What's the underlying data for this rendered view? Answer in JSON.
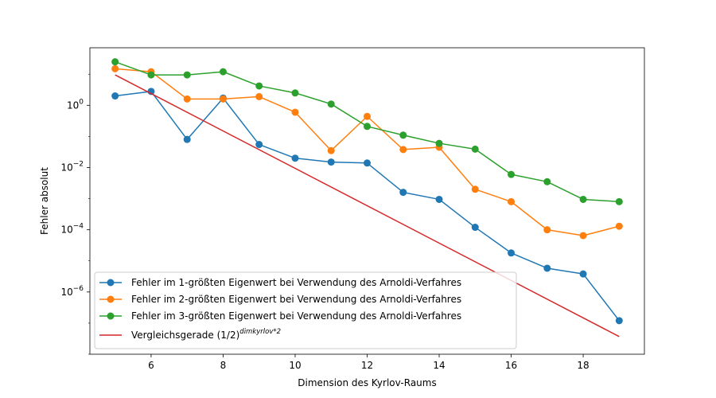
{
  "chart_data": {
    "type": "line",
    "xlabel": "Dimension des Kyrlov-Raums",
    "ylabel": "Fehler absolut",
    "xlim": [
      4.3,
      19.7
    ],
    "ylim_log10": [
      -8.0,
      1.85
    ],
    "yscale": "log",
    "grid": false,
    "legend_position": "lower-left",
    "x_ticks": [
      6,
      8,
      10,
      12,
      14,
      16,
      18
    ],
    "y_ticks": [
      {
        "exp": 0,
        "base": "10",
        "sup": "0"
      },
      {
        "exp": -2,
        "base": "10",
        "sup": "−2"
      },
      {
        "exp": -4,
        "base": "10",
        "sup": "−4"
      },
      {
        "exp": -6,
        "base": "10",
        "sup": "−6"
      }
    ],
    "series": [
      {
        "name": "Fehler im 1-größten Eigenwert bei Verwendung des Arnoldi-Verfahres",
        "color": "#1f77b4",
        "marker": "circle",
        "x": [
          5,
          6,
          7,
          8,
          9,
          10,
          11,
          12,
          13,
          14,
          15,
          16,
          17,
          18,
          19
        ],
        "y": [
          2.0,
          2.8,
          0.08,
          1.7,
          0.055,
          0.02,
          0.015,
          0.014,
          0.0016,
          0.00095,
          0.00012,
          1.8e-05,
          5.8e-06,
          3.8e-06,
          1.2e-07
        ]
      },
      {
        "name": "Fehler im 2-größten Eigenwert bei Verwendung des Arnoldi-Verfahres",
        "color": "#ff7f0e",
        "marker": "circle",
        "x": [
          5,
          6,
          7,
          8,
          9,
          10,
          11,
          12,
          13,
          14,
          15,
          16,
          17,
          18,
          19
        ],
        "y": [
          15,
          12,
          1.6,
          1.6,
          1.9,
          0.6,
          0.035,
          0.44,
          0.038,
          0.045,
          0.002,
          0.0008,
          0.0001,
          6.5e-05,
          0.00013
        ]
      },
      {
        "name": "Fehler im 3-größten Eigenwert bei Verwendung des Arnoldi-Verfahres",
        "color": "#2ca02c",
        "marker": "circle",
        "x": [
          5,
          6,
          7,
          8,
          9,
          10,
          11,
          12,
          13,
          14,
          15,
          16,
          17,
          18,
          19
        ],
        "y": [
          25,
          9.5,
          9.5,
          12,
          4.2,
          2.5,
          1.1,
          0.21,
          0.11,
          0.06,
          0.039,
          0.006,
          0.0035,
          0.00095,
          0.0008
        ]
      },
      {
        "name_main": "Vergleichsgerade (1/2)",
        "name_sup": "dimkyrlov*2",
        "color": "#d62728",
        "marker": "none",
        "x": [
          5,
          19
        ],
        "y": [
          9.5,
          3.7e-08
        ]
      }
    ]
  }
}
